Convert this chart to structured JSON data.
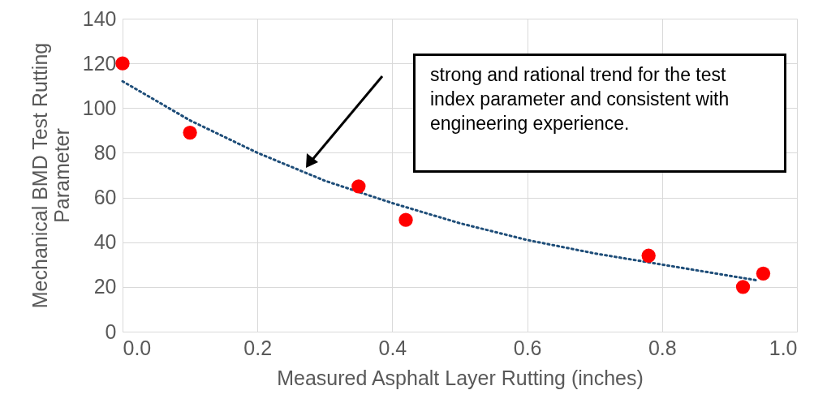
{
  "chart_data": {
    "type": "scatter",
    "xlabel": "Measured Asphalt Layer Rutting (inches)",
    "ylabel": "Mechanical BMD Test Rutting Parameter",
    "xlim": [
      0,
      1
    ],
    "xticks": [
      {
        "value": 0,
        "label": "0.0"
      },
      {
        "value": 0.2,
        "label": "0.2"
      },
      {
        "value": 0.4,
        "label": "0.4"
      },
      {
        "value": 0.6,
        "label": "0.6"
      },
      {
        "value": 0.8,
        "label": "0.8"
      },
      {
        "value": 1,
        "label": "1.0"
      }
    ],
    "ylim": [
      0,
      140
    ],
    "yticks": [
      0,
      20,
      40,
      60,
      80,
      100,
      120,
      140
    ],
    "grid": true,
    "series": [
      {
        "type": "scatter",
        "color": "#ff0000",
        "marker": "circle",
        "x": [
          0,
          0.1,
          0.35,
          0.42,
          0.78,
          0.92,
          0.95
        ],
        "values": [
          120,
          89,
          65,
          50,
          34,
          20,
          26
        ]
      },
      {
        "type": "line",
        "color": "#1f4e79",
        "line_style": "dotted",
        "marker": "none",
        "x": [
          0,
          0.1,
          0.2,
          0.3,
          0.4,
          0.5,
          0.6,
          0.7,
          0.8,
          0.94
        ],
        "values": [
          112,
          94.5,
          80,
          67.5,
          57.5,
          48.5,
          41,
          35,
          30,
          23
        ]
      }
    ],
    "annotations": [
      "strong and rational trend for the test index parameter and consistent with engineering experience."
    ]
  }
}
